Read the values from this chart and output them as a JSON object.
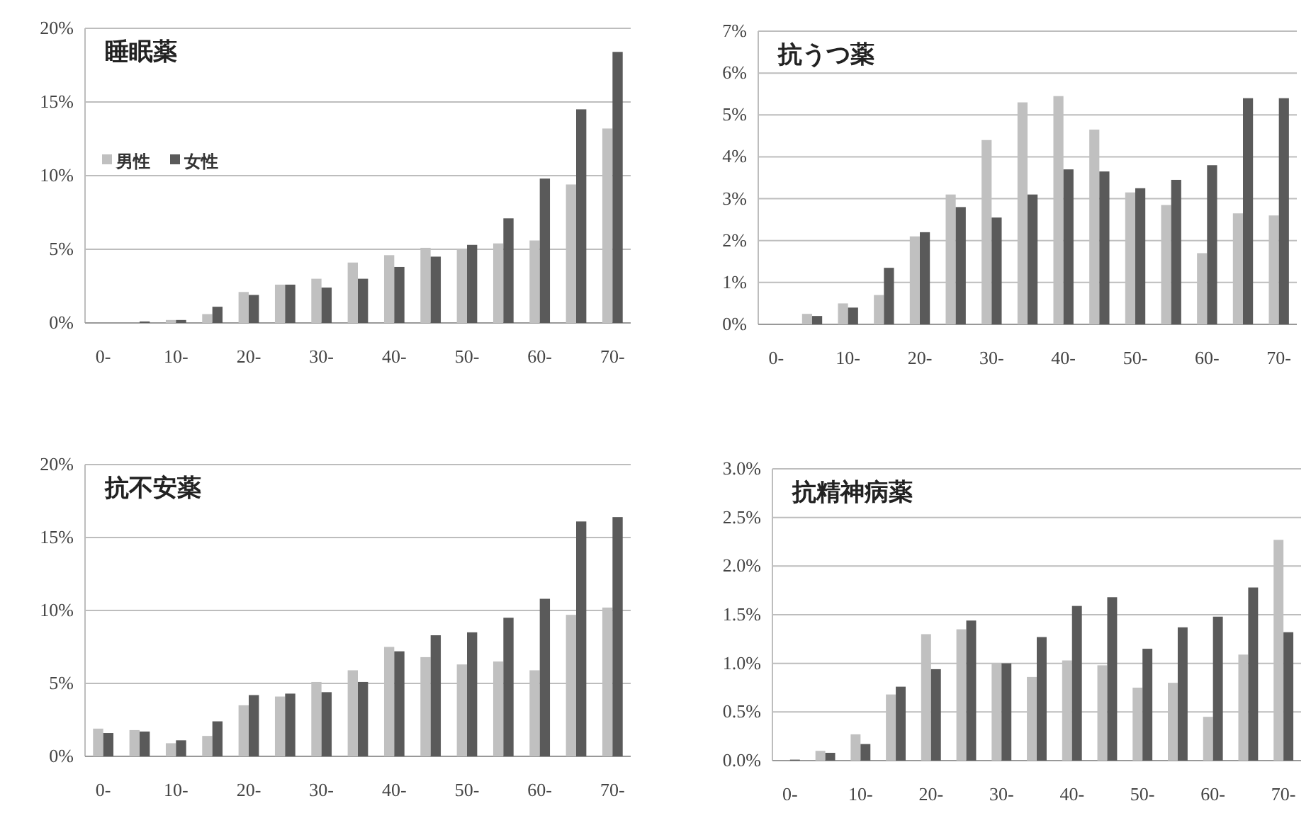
{
  "chart_data": [
    {
      "type": "bar",
      "title": "睡眠薬",
      "categories": [
        "0-",
        null,
        "10-",
        null,
        "20-",
        null,
        "30-",
        null,
        "40-",
        null,
        "50-",
        null,
        "60-",
        null,
        "70-"
      ],
      "ylim": [
        0,
        20
      ],
      "yticks": [
        {
          "value": 0,
          "label": "0%"
        },
        {
          "value": 5,
          "label": "5%"
        },
        {
          "value": 10,
          "label": "10%"
        },
        {
          "value": 15,
          "label": "15%"
        },
        {
          "value": 20,
          "label": "20%"
        }
      ],
      "grid": "y",
      "legend": "left",
      "series": [
        {
          "name": "男性",
          "color": "#c0c0c0",
          "values": [
            null,
            null,
            0.2,
            0.6,
            2.1,
            2.6,
            3.0,
            4.1,
            4.6,
            5.1,
            5.0,
            5.4,
            5.6,
            9.4,
            13.2
          ]
        },
        {
          "name": "女性",
          "color": "#5a5a5a",
          "values": [
            0,
            0.1,
            0.2,
            1.1,
            1.9,
            2.6,
            2.4,
            3.0,
            3.8,
            4.5,
            5.3,
            7.1,
            9.8,
            14.5,
            18.4
          ]
        }
      ]
    },
    {
      "type": "bar",
      "title": "抗うつ薬",
      "categories": [
        "0-",
        null,
        "10-",
        null,
        "20-",
        null,
        "30-",
        null,
        "40-",
        null,
        "50-",
        null,
        "60-",
        null,
        "70-"
      ],
      "ylim": [
        0,
        7
      ],
      "yticks": [
        {
          "value": 0,
          "label": "0%"
        },
        {
          "value": 1,
          "label": "1%"
        },
        {
          "value": 2,
          "label": "2%"
        },
        {
          "value": 3,
          "label": "3%"
        },
        {
          "value": 4,
          "label": "4%"
        },
        {
          "value": 5,
          "label": "5%"
        },
        {
          "value": 6,
          "label": "6%"
        },
        {
          "value": 7,
          "label": "7%"
        }
      ],
      "grid": "y",
      "series": [
        {
          "color": "#c0c0c0",
          "values": [
            0,
            0.25,
            0.5,
            0.7,
            2.1,
            3.1,
            4.4,
            5.3,
            5.45,
            4.65,
            3.15,
            2.85,
            1.7,
            2.65,
            2.6
          ]
        },
        {
          "color": "#5a5a5a",
          "values": [
            0,
            0.2,
            0.4,
            1.35,
            2.2,
            2.8,
            2.55,
            3.1,
            3.7,
            3.65,
            3.25,
            3.45,
            3.8,
            5.4,
            5.4
          ]
        }
      ]
    },
    {
      "type": "bar",
      "title": "抗不安薬",
      "categories": [
        "0-",
        null,
        "10-",
        null,
        "20-",
        null,
        "30-",
        null,
        "40-",
        null,
        "50-",
        null,
        "60-",
        null,
        "70-"
      ],
      "ylim": [
        0,
        20
      ],
      "yticks": [
        {
          "value": 0,
          "label": "0%"
        },
        {
          "value": 5,
          "label": "5%"
        },
        {
          "value": 10,
          "label": "10%"
        },
        {
          "value": 15,
          "label": "15%"
        },
        {
          "value": 20,
          "label": "20%"
        }
      ],
      "grid": "y",
      "series": [
        {
          "color": "#c0c0c0",
          "values": [
            1.9,
            1.8,
            0.9,
            1.4,
            3.5,
            4.1,
            5.1,
            5.9,
            7.5,
            6.8,
            6.3,
            6.5,
            5.9,
            9.7,
            10.2
          ]
        },
        {
          "color": "#5a5a5a",
          "values": [
            1.6,
            1.7,
            1.1,
            2.4,
            4.2,
            4.3,
            4.4,
            5.1,
            7.2,
            8.3,
            8.5,
            9.5,
            10.8,
            16.1,
            16.4
          ]
        }
      ]
    },
    {
      "type": "bar",
      "title": "抗精神病薬",
      "categories": [
        "0-",
        null,
        "10-",
        null,
        "20-",
        null,
        "30-",
        null,
        "40-",
        null,
        "50-",
        null,
        "60-",
        null,
        "70-"
      ],
      "ylim": [
        0,
        3
      ],
      "yticks": [
        {
          "value": 0,
          "label": "0.0%"
        },
        {
          "value": 0.5,
          "label": "0.5%"
        },
        {
          "value": 1,
          "label": "1.0%"
        },
        {
          "value": 1.5,
          "label": "1.5%"
        },
        {
          "value": 2,
          "label": "2.0%"
        },
        {
          "value": 2.5,
          "label": "2.5%"
        },
        {
          "value": 3,
          "label": "3.0%"
        }
      ],
      "grid": "y",
      "series": [
        {
          "color": "#c0c0c0",
          "values": [
            null,
            0.1,
            0.27,
            0.68,
            1.3,
            1.35,
            1.0,
            0.86,
            1.03,
            0.98,
            0.75,
            0.8,
            0.45,
            1.09,
            2.27
          ]
        },
        {
          "color": "#5a5a5a",
          "values": [
            0.01,
            0.08,
            0.17,
            0.76,
            0.94,
            1.44,
            1.0,
            1.27,
            1.59,
            1.68,
            1.15,
            1.37,
            1.48,
            1.78,
            1.32
          ]
        }
      ]
    }
  ]
}
